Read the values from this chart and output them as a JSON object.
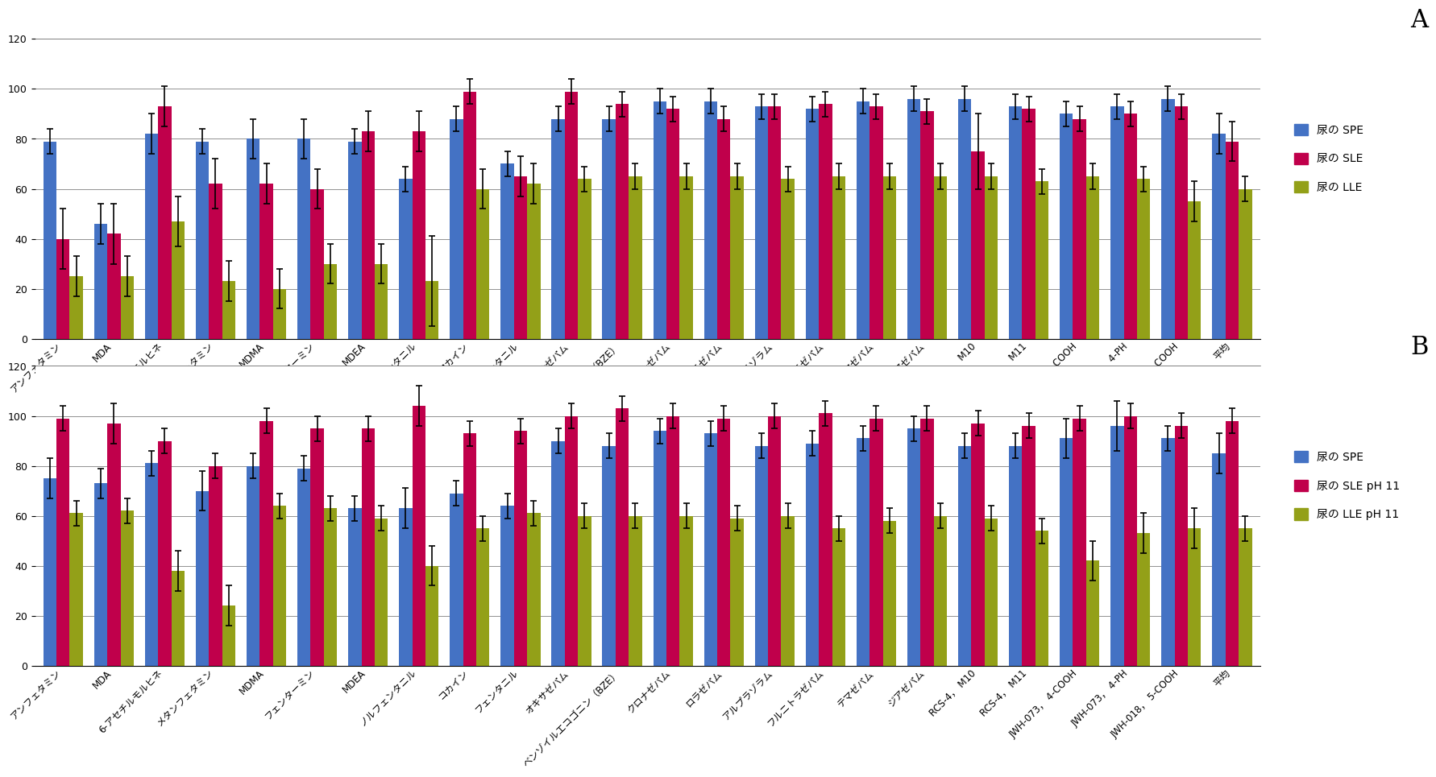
{
  "categories": [
    "アンフェタミン",
    "MDA",
    "6-アセチルモルヒネ",
    "メタンフェタミン",
    "MDMA",
    "フェンターミン",
    "MDEA",
    "ノルフェンタニル",
    "コカイン",
    "フェンタニル",
    "オキサゼパム",
    "ベンゾイルエコゴニン（BZE）",
    "クロナゼパム",
    "ロラゼパム",
    "アルプラゾラム",
    "フルニトラゼパム",
    "テマゼパム",
    "ジアゼパム",
    "RCS-4， M10",
    "RCS-4， M11",
    "JWH-073， 4-COOH",
    "JWH-073， 4-PH",
    "JWH-018， 5-COOH",
    "平均"
  ],
  "chart_A": {
    "blue": [
      79,
      46,
      82,
      79,
      80,
      80,
      79,
      64,
      88,
      70,
      88,
      88,
      95,
      95,
      93,
      92,
      95,
      96,
      96,
      93,
      90,
      93,
      96,
      82
    ],
    "red": [
      40,
      42,
      93,
      62,
      62,
      60,
      83,
      83,
      99,
      65,
      99,
      94,
      92,
      88,
      93,
      94,
      93,
      91,
      75,
      92,
      88,
      90,
      93,
      79
    ],
    "green": [
      25,
      25,
      47,
      23,
      20,
      30,
      30,
      23,
      60,
      62,
      64,
      65,
      65,
      65,
      64,
      65,
      65,
      65,
      65,
      63,
      65,
      64,
      55,
      60
    ],
    "blue_err": [
      5,
      8,
      8,
      5,
      8,
      8,
      5,
      5,
      5,
      5,
      5,
      5,
      5,
      5,
      5,
      5,
      5,
      5,
      5,
      5,
      5,
      5,
      5,
      8
    ],
    "red_err": [
      12,
      12,
      8,
      10,
      8,
      8,
      8,
      8,
      5,
      8,
      5,
      5,
      5,
      5,
      5,
      5,
      5,
      5,
      15,
      5,
      5,
      5,
      5,
      8
    ],
    "green_err": [
      8,
      8,
      10,
      8,
      8,
      8,
      8,
      18,
      8,
      8,
      5,
      5,
      5,
      5,
      5,
      5,
      5,
      5,
      5,
      5,
      5,
      5,
      8,
      5
    ]
  },
  "chart_B": {
    "blue": [
      75,
      73,
      81,
      70,
      80,
      79,
      63,
      63,
      69,
      64,
      90,
      88,
      94,
      93,
      88,
      89,
      91,
      95,
      88,
      88,
      91,
      96,
      91,
      85
    ],
    "red": [
      99,
      97,
      90,
      80,
      98,
      95,
      95,
      104,
      93,
      94,
      100,
      103,
      100,
      99,
      100,
      101,
      99,
      99,
      97,
      96,
      99,
      100,
      96,
      98
    ],
    "green": [
      61,
      62,
      38,
      24,
      64,
      63,
      59,
      40,
      55,
      61,
      60,
      60,
      60,
      59,
      60,
      55,
      58,
      60,
      59,
      54,
      42,
      53,
      55,
      55
    ],
    "blue_err": [
      8,
      6,
      5,
      8,
      5,
      5,
      5,
      8,
      5,
      5,
      5,
      5,
      5,
      5,
      5,
      5,
      5,
      5,
      5,
      5,
      8,
      10,
      5,
      8
    ],
    "red_err": [
      5,
      8,
      5,
      5,
      5,
      5,
      5,
      8,
      5,
      5,
      5,
      5,
      5,
      5,
      5,
      5,
      5,
      5,
      5,
      5,
      5,
      5,
      5,
      5
    ],
    "green_err": [
      5,
      5,
      8,
      8,
      5,
      5,
      5,
      8,
      5,
      5,
      5,
      5,
      5,
      5,
      5,
      5,
      5,
      5,
      5,
      5,
      8,
      8,
      8,
      5
    ]
  },
  "blue_color": "#4472C4",
  "red_color": "#C0004B",
  "green_color": "#93A018",
  "legend_A": [
    "尿の SPE",
    "尿の SLE",
    "尿の LLE"
  ],
  "legend_B": [
    "尿の SPE",
    "尿の SLE pH 11",
    "尿の LLE pH 11"
  ],
  "ylim": [
    0,
    120
  ],
  "yticks": [
    0,
    20,
    40,
    60,
    80,
    100,
    120
  ],
  "label_A": "A",
  "label_B": "B"
}
